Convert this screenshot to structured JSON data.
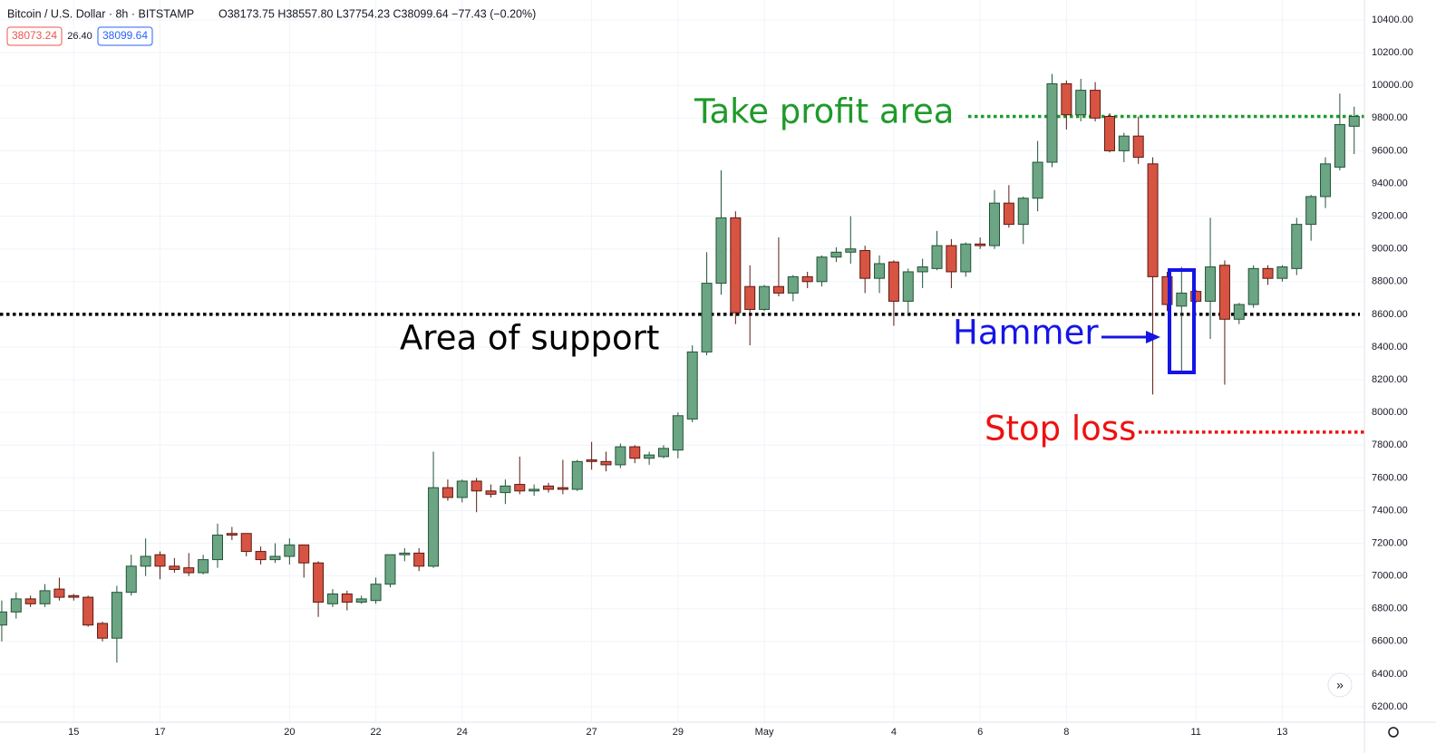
{
  "header": {
    "symbol": "Bitcoin / U.S. Dollar · 8h · BITSTAMP",
    "ohlc": "O38173.75 H38557.80 L37754.23 C38099.64 −77.43 (−0.20%)",
    "bid": "38073.24",
    "spread": "26.40",
    "ask": "38099.64"
  },
  "chart_data": {
    "type": "candlestick",
    "categories": [
      null,
      null,
      null,
      null,
      null,
      "15",
      null,
      null,
      null,
      null,
      null,
      "17",
      null,
      null,
      null,
      null,
      null,
      null,
      null,
      null,
      "20",
      null,
      null,
      null,
      null,
      null,
      "22",
      null,
      null,
      null,
      null,
      null,
      "24",
      null,
      null,
      null,
      null,
      null,
      null,
      null,
      null,
      "27",
      null,
      null,
      null,
      null,
      null,
      "29",
      null,
      null,
      null,
      null,
      null,
      "May",
      null,
      null,
      null,
      null,
      null,
      null,
      null,
      null,
      "4",
      null,
      null,
      null,
      null,
      null,
      "6",
      null,
      null,
      null,
      null,
      null,
      "8",
      null,
      null,
      null,
      null,
      null,
      null,
      null,
      null,
      "11",
      null,
      null,
      null,
      null,
      null,
      "13",
      null,
      null,
      null,
      null,
      null
    ],
    "open": [
      6700,
      6780,
      6860,
      6830,
      6920,
      6880,
      6870,
      6710,
      6620,
      6900,
      7060,
      7130,
      7060,
      7050,
      7020,
      7100,
      7260,
      7260,
      7150,
      7100,
      7120,
      7190,
      7080,
      6830,
      6890,
      6840,
      6850,
      6950,
      7130,
      7140,
      7060,
      7540,
      7480,
      7580,
      7520,
      7510,
      7560,
      7520,
      7550,
      7540,
      7530,
      7710,
      7700,
      7680,
      7790,
      7720,
      7730,
      7770,
      7960,
      8370,
      8790,
      9190,
      8770,
      8630,
      8770,
      8730,
      8830,
      8800,
      8950,
      8980,
      8990,
      8820,
      8920,
      8680,
      8860,
      8880,
      9020,
      8860,
      9030,
      9020,
      9280,
      9150,
      9310,
      9530,
      10010,
      9820,
      9970,
      9810,
      9600,
      9690,
      9520,
      8830,
      8650,
      8740,
      8680,
      8900,
      8570,
      8660,
      8880,
      8820,
      8880,
      9150,
      9320,
      9500,
      9750
    ],
    "high": [
      6850,
      6900,
      6880,
      6950,
      6990,
      6890,
      6880,
      6720,
      6940,
      7130,
      7230,
      7150,
      7110,
      7140,
      7130,
      7320,
      7300,
      7260,
      7180,
      7200,
      7230,
      7190,
      7090,
      6920,
      6910,
      6880,
      6990,
      7130,
      7170,
      7170,
      7760,
      7590,
      7590,
      7600,
      7560,
      7590,
      7730,
      7560,
      7570,
      7710,
      7710,
      7820,
      7760,
      7810,
      7800,
      7760,
      7800,
      8000,
      8410,
      8980,
      9480,
      9230,
      8900,
      8780,
      9070,
      8840,
      8860,
      8960,
      9010,
      9200,
      9020,
      8960,
      8930,
      8880,
      8940,
      9110,
      9060,
      9040,
      9070,
      9360,
      9390,
      9320,
      9660,
      10070,
      10030,
      10040,
      10020,
      9830,
      9710,
      9810,
      9560,
      8860,
      8890,
      8750,
      9190,
      8930,
      8670,
      8900,
      8900,
      8900,
      9190,
      9330,
      9560,
      9950,
      9870
    ],
    "low": [
      6600,
      6740,
      6810,
      6810,
      6850,
      6850,
      6690,
      6600,
      6470,
      6880,
      7000,
      6980,
      7020,
      7000,
      7010,
      7050,
      7220,
      7120,
      7070,
      7080,
      7070,
      6990,
      6750,
      6810,
      6790,
      6830,
      6830,
      6930,
      7090,
      7030,
      7050,
      7460,
      7450,
      7390,
      7480,
      7440,
      7500,
      7490,
      7510,
      7500,
      7520,
      7650,
      7640,
      7660,
      7690,
      7680,
      7720,
      7720,
      7940,
      8350,
      8720,
      8540,
      8410,
      8620,
      8710,
      8680,
      8760,
      8770,
      8920,
      8910,
      8730,
      8730,
      8530,
      8600,
      8760,
      8870,
      8760,
      8830,
      9000,
      9000,
      9130,
      9030,
      9230,
      9500,
      9730,
      9780,
      9780,
      9590,
      9530,
      9520,
      8110,
      8620,
      8240,
      8670,
      8450,
      8170,
      8540,
      8640,
      8780,
      8800,
      8840,
      9050,
      9250,
      9480,
      9580
    ],
    "close": [
      6780,
      6860,
      6830,
      6910,
      6870,
      6870,
      6700,
      6620,
      6900,
      7060,
      7120,
      7060,
      7040,
      7020,
      7100,
      7250,
      7250,
      7150,
      7100,
      7120,
      7190,
      7080,
      6840,
      6890,
      6840,
      6860,
      6950,
      7130,
      7140,
      7060,
      7540,
      7480,
      7580,
      7520,
      7500,
      7550,
      7520,
      7530,
      7530,
      7530,
      7700,
      7700,
      7680,
      7790,
      7720,
      7740,
      7780,
      7980,
      8370,
      8790,
      9190,
      8610,
      8630,
      8770,
      8730,
      8830,
      8800,
      8950,
      8980,
      9000,
      8820,
      8910,
      8680,
      8860,
      8890,
      9020,
      8860,
      9030,
      9020,
      9280,
      9150,
      9310,
      9530,
      10010,
      9820,
      9970,
      9800,
      9600,
      9690,
      9560,
      8830,
      8660,
      8730,
      8680,
      8890,
      8570,
      8660,
      8880,
      8820,
      8890,
      9150,
      9320,
      9520,
      9760,
      9810
    ],
    "up_color": "#6ba583",
    "down_color": "#d75442",
    "ylim": [
      6106,
      10522
    ],
    "yticks": [
      {
        "value": 6200,
        "label": "6200.00"
      },
      {
        "value": 6400,
        "label": "6400.00"
      },
      {
        "value": 6600,
        "label": "6600.00"
      },
      {
        "value": 6800,
        "label": "6800.00"
      },
      {
        "value": 7000,
        "label": "7000.00"
      },
      {
        "value": 7200,
        "label": "7200.00"
      },
      {
        "value": 7400,
        "label": "7400.00"
      },
      {
        "value": 7600,
        "label": "7600.00"
      },
      {
        "value": 7800,
        "label": "7800.00"
      },
      {
        "value": 8000,
        "label": "8000.00"
      },
      {
        "value": 8200,
        "label": "8200.00"
      },
      {
        "value": 8400,
        "label": "8400.00"
      },
      {
        "value": 8600,
        "label": "8600.00"
      },
      {
        "value": 8800,
        "label": "8800.00"
      },
      {
        "value": 9000,
        "label": "9000.00"
      },
      {
        "value": 9200,
        "label": "9200.00"
      },
      {
        "value": 9400,
        "label": "9400.00"
      },
      {
        "value": 9600,
        "label": "9600.00"
      },
      {
        "value": 9800,
        "label": "9800.00"
      },
      {
        "value": 10000,
        "label": "10000.00"
      },
      {
        "value": 10200,
        "label": "10200.00"
      },
      {
        "value": 10400,
        "label": "10400.00"
      }
    ],
    "grid": true,
    "levels": [
      {
        "value": 9810,
        "color": "#1f9a2a"
      },
      {
        "value": 8600,
        "color": "#000000"
      },
      {
        "value": 7880,
        "color": "#ee1111"
      }
    ],
    "annotations": [
      {
        "text": "Take profit area",
        "color": "#1f9a2a"
      },
      {
        "text": "Area of support",
        "color": "#000000"
      },
      {
        "text": "Hammer",
        "color": "#1515e6"
      },
      {
        "text": "Stop loss",
        "color": "#ee1111"
      }
    ]
  }
}
